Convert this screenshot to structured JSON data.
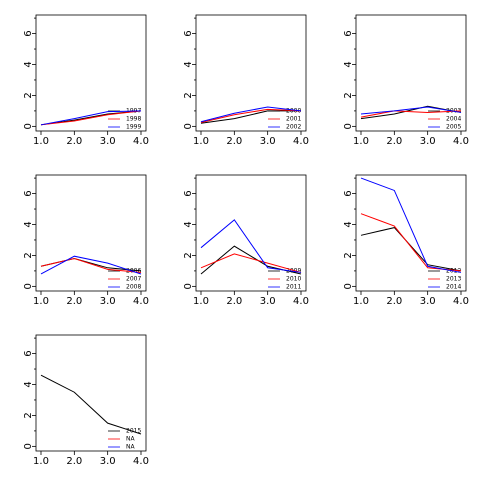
{
  "chart_data": [
    {
      "type": "line",
      "x": [
        1,
        2,
        3,
        4
      ],
      "xlim": [
        0.85,
        4.15
      ],
      "ylim": [
        -0.3,
        7.2
      ],
      "xticks": [
        {
          "value": 1,
          "label": "1.0"
        },
        {
          "value": 2,
          "label": "2.0"
        },
        {
          "value": 3,
          "label": "3.0"
        },
        {
          "value": 4,
          "label": "4.0"
        }
      ],
      "yticks": [
        0,
        2,
        4,
        6
      ],
      "yminorticks": [
        1,
        3,
        5,
        7
      ],
      "legend": "bottom-right",
      "series": [
        {
          "name": "1997",
          "color": "#000000",
          "values": [
            0.1,
            0.4,
            0.8,
            1.0
          ]
        },
        {
          "name": "1998",
          "color": "#ff0000",
          "values": [
            0.1,
            0.35,
            0.75,
            1.0
          ]
        },
        {
          "name": "1999",
          "color": "#0000ff",
          "values": [
            0.1,
            0.5,
            0.95,
            1.0
          ]
        }
      ]
    },
    {
      "type": "line",
      "x": [
        1,
        2,
        3,
        4
      ],
      "xlim": [
        0.85,
        4.15
      ],
      "ylim": [
        -0.3,
        7.2
      ],
      "xticks": [
        {
          "value": 1,
          "label": "1.0"
        },
        {
          "value": 2,
          "label": "2.0"
        },
        {
          "value": 3,
          "label": "3.0"
        },
        {
          "value": 4,
          "label": "4.0"
        }
      ],
      "yticks": [
        0,
        2,
        4,
        6
      ],
      "yminorticks": [
        1,
        3,
        5,
        7
      ],
      "legend": "bottom-right",
      "series": [
        {
          "name": "2000",
          "color": "#000000",
          "values": [
            0.2,
            0.5,
            1.0,
            1.0
          ]
        },
        {
          "name": "2001",
          "color": "#ff0000",
          "values": [
            0.25,
            0.75,
            1.1,
            1.0
          ]
        },
        {
          "name": "2002",
          "color": "#0000ff",
          "values": [
            0.3,
            0.85,
            1.25,
            1.0
          ]
        }
      ]
    },
    {
      "type": "line",
      "x": [
        1,
        2,
        3,
        4
      ],
      "xlim": [
        0.85,
        4.15
      ],
      "ylim": [
        -0.3,
        7.2
      ],
      "xticks": [
        {
          "value": 1,
          "label": "1.0"
        },
        {
          "value": 2,
          "label": "2.0"
        },
        {
          "value": 3,
          "label": "3.0"
        },
        {
          "value": 4,
          "label": "4.0"
        }
      ],
      "yticks": [
        0,
        2,
        4,
        6
      ],
      "yminorticks": [
        1,
        3,
        5,
        7
      ],
      "legend": "bottom-right",
      "series": [
        {
          "name": "2003",
          "color": "#000000",
          "values": [
            0.5,
            0.8,
            1.3,
            0.9
          ]
        },
        {
          "name": "2004",
          "color": "#ff0000",
          "values": [
            0.6,
            1.0,
            0.9,
            1.0
          ]
        },
        {
          "name": "2005",
          "color": "#0000ff",
          "values": [
            0.8,
            1.0,
            1.25,
            0.9
          ]
        }
      ]
    },
    {
      "type": "line",
      "x": [
        1,
        2,
        3,
        4
      ],
      "xlim": [
        0.85,
        4.15
      ],
      "ylim": [
        -0.3,
        7.2
      ],
      "xticks": [
        {
          "value": 1,
          "label": "1.0"
        },
        {
          "value": 2,
          "label": "2.0"
        },
        {
          "value": 3,
          "label": "3.0"
        },
        {
          "value": 4,
          "label": "4.0"
        }
      ],
      "yticks": [
        0,
        2,
        4,
        6
      ],
      "yminorticks": [
        1,
        3,
        5,
        7
      ],
      "legend": "bottom-right",
      "series": [
        {
          "name": "2006",
          "color": "#000000",
          "values": [
            1.3,
            1.8,
            1.2,
            1.0
          ]
        },
        {
          "name": "2007",
          "color": "#ff0000",
          "values": [
            1.3,
            1.8,
            1.1,
            0.9
          ]
        },
        {
          "name": "2008",
          "color": "#0000ff",
          "values": [
            0.8,
            1.95,
            1.5,
            0.8
          ]
        }
      ]
    },
    {
      "type": "line",
      "x": [
        1,
        2,
        3,
        4
      ],
      "xlim": [
        0.85,
        4.15
      ],
      "ylim": [
        -0.3,
        7.2
      ],
      "xticks": [
        {
          "value": 1,
          "label": "1.0"
        },
        {
          "value": 2,
          "label": "2.0"
        },
        {
          "value": 3,
          "label": "3.0"
        },
        {
          "value": 4,
          "label": "4.0"
        }
      ],
      "yticks": [
        0,
        2,
        4,
        6
      ],
      "yminorticks": [
        1,
        3,
        5,
        7
      ],
      "legend": "bottom-right",
      "series": [
        {
          "name": "2009",
          "color": "#000000",
          "values": [
            0.8,
            2.6,
            1.3,
            0.8
          ]
        },
        {
          "name": "2010",
          "color": "#ff0000",
          "values": [
            1.2,
            2.1,
            1.5,
            0.9
          ]
        },
        {
          "name": "2011",
          "color": "#0000ff",
          "values": [
            2.5,
            4.3,
            1.2,
            0.9
          ]
        }
      ]
    },
    {
      "type": "line",
      "x": [
        1,
        2,
        3,
        4
      ],
      "xlim": [
        0.85,
        4.15
      ],
      "ylim": [
        -0.3,
        7.2
      ],
      "xticks": [
        {
          "value": 1,
          "label": "1.0"
        },
        {
          "value": 2,
          "label": "2.0"
        },
        {
          "value": 3,
          "label": "3.0"
        },
        {
          "value": 4,
          "label": "4.0"
        }
      ],
      "yticks": [
        0,
        2,
        4,
        6
      ],
      "yminorticks": [
        1,
        3,
        5,
        7
      ],
      "legend": "bottom-right",
      "series": [
        {
          "name": "2012",
          "color": "#000000",
          "values": [
            3.3,
            3.8,
            1.4,
            1.0
          ]
        },
        {
          "name": "2013",
          "color": "#ff0000",
          "values": [
            4.7,
            3.9,
            1.2,
            1.0
          ]
        },
        {
          "name": "2014",
          "color": "#0000ff",
          "values": [
            7.0,
            6.2,
            1.3,
            0.9
          ]
        }
      ]
    },
    {
      "type": "line",
      "x": [
        1,
        2,
        3,
        4
      ],
      "xlim": [
        0.85,
        4.15
      ],
      "ylim": [
        -0.3,
        7.2
      ],
      "xticks": [
        {
          "value": 1,
          "label": "1.0"
        },
        {
          "value": 2,
          "label": "2.0"
        },
        {
          "value": 3,
          "label": "3.0"
        },
        {
          "value": 4,
          "label": "4.0"
        }
      ],
      "yticks": [
        0,
        2,
        4,
        6
      ],
      "yminorticks": [
        1,
        3,
        5,
        7
      ],
      "legend": "bottom-right",
      "series": [
        {
          "name": "2015",
          "color": "#000000",
          "values": [
            4.6,
            3.5,
            1.5,
            0.8
          ]
        },
        {
          "name": "NA",
          "color": "#ff0000",
          "values": [
            null,
            null,
            null,
            null
          ]
        },
        {
          "name": "NA",
          "color": "#0000ff",
          "values": [
            null,
            null,
            null,
            null
          ]
        }
      ]
    }
  ]
}
